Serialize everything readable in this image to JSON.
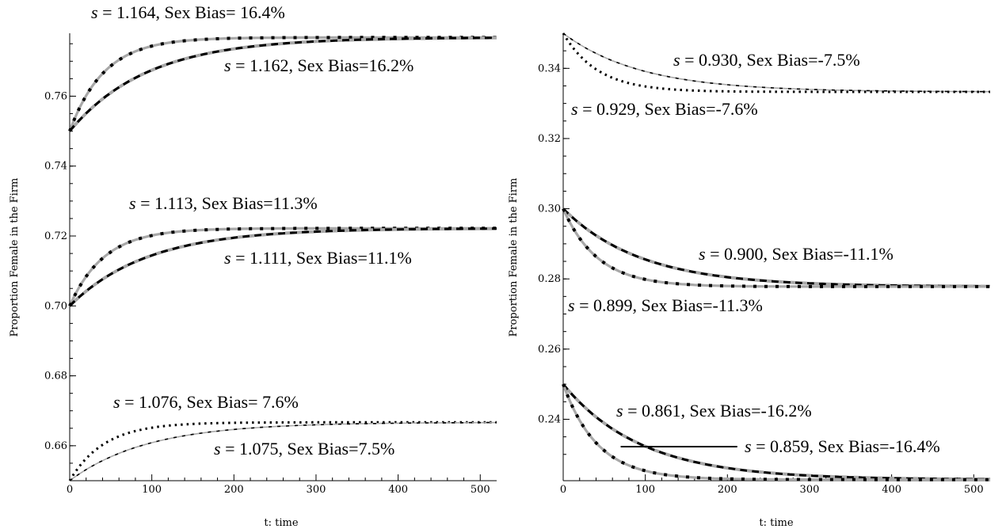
{
  "chart_data": [
    {
      "type": "line",
      "xlabel": "t: time",
      "ylabel": "Proportion Female in the Firm",
      "xlim": [
        0,
        520
      ],
      "ylim": [
        0.65,
        0.778
      ],
      "xticks": [
        0,
        100,
        200,
        300,
        400,
        500
      ],
      "yticks": [
        0.66,
        0.68,
        0.7,
        0.72,
        0.74,
        0.76
      ],
      "ytick_labels": [
        "0.66",
        "0.68",
        "0.70",
        "0.72",
        "0.74",
        "0.76"
      ],
      "grid": false,
      "series": [
        {
          "start": 0.75,
          "end": 0.7768,
          "tau": 42,
          "style": "solid-dotted"
        },
        {
          "start": 0.75,
          "end": 0.7768,
          "tau": 95,
          "style": "dashed"
        },
        {
          "start": 0.7,
          "end": 0.7222,
          "tau": 42,
          "style": "solid-dotted"
        },
        {
          "start": 0.7,
          "end": 0.7222,
          "tau": 95,
          "style": "dashed"
        },
        {
          "start": 0.65,
          "end": 0.6667,
          "tau": 42,
          "style": "dotted"
        },
        {
          "start": 0.65,
          "end": 0.6667,
          "tau": 95,
          "style": "dashed-thin"
        }
      ],
      "annotations": [
        {
          "sym": "s",
          "text": " = 1.164, Sex Bias= 16.4%"
        },
        {
          "sym": "s",
          "text": " = 1.162, Sex Bias=16.2%"
        },
        {
          "sym": "s",
          "text": " = 1.113, Sex Bias=11.3%"
        },
        {
          "sym": "s",
          "text": " = 1.111, Sex Bias=11.1%"
        },
        {
          "sym": "s",
          "text": " = 1.076, Sex Bias= 7.6%"
        },
        {
          "sym": "s",
          "text": " = 1.075, Sex Bias=7.5%"
        }
      ]
    },
    {
      "type": "line",
      "xlabel": "t: time",
      "ylabel": "Proportion Female in the Firm",
      "xlim": [
        0,
        520
      ],
      "ylim": [
        0.2225,
        0.35
      ],
      "xticks": [
        0,
        100,
        200,
        300,
        400,
        500
      ],
      "yticks": [
        0.24,
        0.26,
        0.28,
        0.3,
        0.32,
        0.34
      ],
      "ytick_labels": [
        "0.24",
        "0.26",
        "0.28",
        "0.30",
        "0.32",
        "0.34"
      ],
      "grid": false,
      "series": [
        {
          "start": 0.35,
          "end": 0.3333,
          "tau": 95,
          "style": "dashed-thin"
        },
        {
          "start": 0.35,
          "end": 0.3333,
          "tau": 42,
          "style": "dotted"
        },
        {
          "start": 0.3,
          "end": 0.2778,
          "tau": 95,
          "style": "dashed"
        },
        {
          "start": 0.3,
          "end": 0.2778,
          "tau": 42,
          "style": "solid-dotted"
        },
        {
          "start": 0.25,
          "end": 0.2228,
          "tau": 95,
          "style": "dashed"
        },
        {
          "start": 0.25,
          "end": 0.2228,
          "tau": 42,
          "style": "solid-dotted"
        }
      ],
      "annotations": [
        {
          "sym": "s",
          "text": " = 0.930, Sex Bias=-7.5%"
        },
        {
          "sym": "s",
          "text": " = 0.929, Sex  Bias=-7.6%"
        },
        {
          "sym": "s",
          "text": " = 0.900, Sex Bias=-11.1%"
        },
        {
          "sym": "s",
          "text": " = 0.899, Sex Bias=-11.3%"
        },
        {
          "sym": "s",
          "text": " = 0.861, Sex Bias=-16.2%"
        },
        {
          "sym": "s",
          "text": " = 0.859, Sex Bias=-16.4%"
        }
      ]
    }
  ]
}
